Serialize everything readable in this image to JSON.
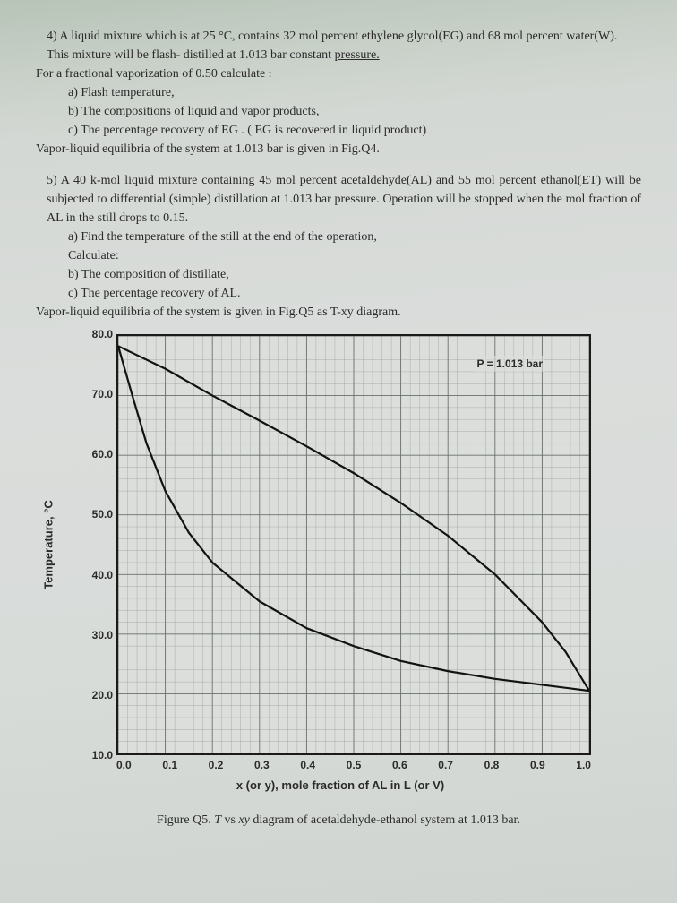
{
  "q4": {
    "intro": "4) A liquid mixture which is at 25 °C, contains 32 mol percent ethylene glycol(EG) and 68 mol percent water(W). This mixture will be flash- distilled at 1.013 bar constant ",
    "pressure_word": "pressure.",
    "lead": "For a fractional vaporization of 0.50 calculate :",
    "a": "a)  Flash temperature,",
    "b": "b)  The compositions of liquid and vapor products,",
    "c": "c)  The percentage recovery of EG .  ( EG is recovered in liquid product)",
    "tail": "Vapor-liquid equilibria of the system at 1.013 bar is given in Fig.Q4."
  },
  "q5": {
    "intro": "5) A 40 k-mol liquid mixture containing 45 mol percent acetaldehyde(AL) and 55 mol percent ethanol(ET) will be subjected to differential (simple) distillation at 1.013 bar pressure. Operation will be stopped when the mol fraction of AL in the still drops to 0.15.",
    "a": "a)  Find the temperature of the still at the end of the operation,",
    "calc": "Calculate:",
    "b": "b)  The composition of distillate,",
    "c": "c)  The percentage recovery of AL.",
    "tail": "Vapor-liquid equilibria of the system is given in Fig.Q5 as T-xy diagram."
  },
  "chart": {
    "type": "line",
    "ylabel": "Temperature, °C",
    "xlabel": "x (or y), mole fraction of AL in L (or V)",
    "annotation": "P = 1.013 bar",
    "xlim": [
      0.0,
      1.0
    ],
    "ylim": [
      10.0,
      80.0
    ],
    "xtick_step": 0.1,
    "ytick_step": 10.0,
    "xticks": [
      "0.0",
      "0.1",
      "0.2",
      "0.3",
      "0.4",
      "0.5",
      "0.6",
      "0.7",
      "0.8",
      "0.9",
      "1.0"
    ],
    "yticks": [
      "80.0",
      "70.0",
      "60.0",
      "50.0",
      "40.0",
      "30.0",
      "20.0",
      "10.0"
    ],
    "background_color": "#dcdedc",
    "grid_minor_color": "#9aa29a",
    "grid_major_color": "#6a726a",
    "line_color": "#121212",
    "line_width": 2.2,
    "dew_curve": [
      {
        "x": 0.0,
        "y": 78.3
      },
      {
        "x": 0.1,
        "y": 74.5
      },
      {
        "x": 0.2,
        "y": 70.0
      },
      {
        "x": 0.3,
        "y": 65.8
      },
      {
        "x": 0.4,
        "y": 61.5
      },
      {
        "x": 0.5,
        "y": 57.0
      },
      {
        "x": 0.6,
        "y": 52.0
      },
      {
        "x": 0.7,
        "y": 46.5
      },
      {
        "x": 0.8,
        "y": 40.0
      },
      {
        "x": 0.9,
        "y": 32.0
      },
      {
        "x": 0.95,
        "y": 27.0
      },
      {
        "x": 1.0,
        "y": 20.5
      }
    ],
    "bubble_curve": [
      {
        "x": 0.0,
        "y": 78.3
      },
      {
        "x": 0.03,
        "y": 70.0
      },
      {
        "x": 0.06,
        "y": 62.0
      },
      {
        "x": 0.1,
        "y": 54.0
      },
      {
        "x": 0.15,
        "y": 47.0
      },
      {
        "x": 0.2,
        "y": 42.0
      },
      {
        "x": 0.3,
        "y": 35.5
      },
      {
        "x": 0.4,
        "y": 31.0
      },
      {
        "x": 0.5,
        "y": 28.0
      },
      {
        "x": 0.6,
        "y": 25.5
      },
      {
        "x": 0.7,
        "y": 23.8
      },
      {
        "x": 0.8,
        "y": 22.5
      },
      {
        "x": 0.9,
        "y": 21.5
      },
      {
        "x": 1.0,
        "y": 20.5
      }
    ]
  },
  "caption_prefix": "Figure Q5. ",
  "caption_ital": "T",
  "caption_mid": " vs ",
  "caption_ital2": "xy",
  "caption_rest": " diagram of acetaldehyde-ethanol system at 1.013 bar."
}
